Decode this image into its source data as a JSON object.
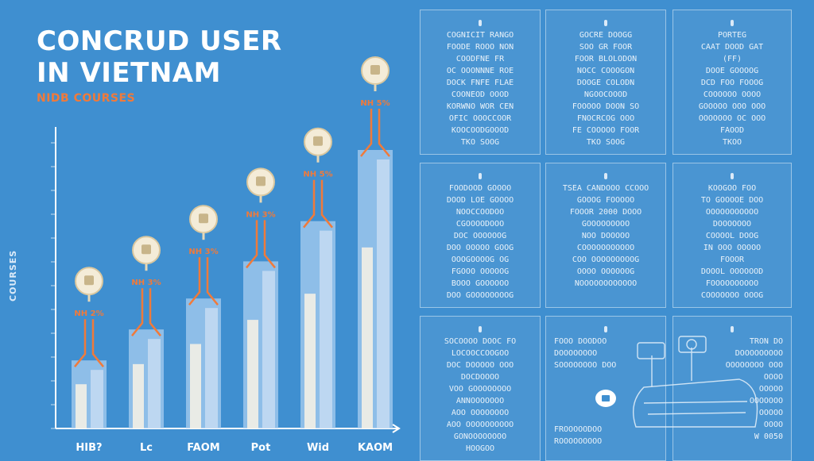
{
  "header": {
    "title_line1": "CONCRUD USER",
    "title_line2": "IN VIETNAM",
    "subtitle": "NIDB COURSES"
  },
  "colors": {
    "background": "#3f8fd0",
    "bar_fill": "#a9cdf0",
    "bar_inner": "#f3efe6",
    "connector": "#f07a3a",
    "axis": "#ffffff"
  },
  "chart_data": {
    "type": "bar",
    "title": "CONCRUD USER IN VIETNAM",
    "subtitle": "NIDB COURSES",
    "ylabel": "COURSES",
    "categories": [
      "HIB?",
      "Lc",
      "FAOM",
      "Pot",
      "Wid",
      "KAOM"
    ],
    "values": [
      22,
      32,
      42,
      54,
      67,
      90
    ],
    "data_labels": [
      "NH 2%",
      "NH 3%",
      "NH 3%",
      "NH 3%",
      "NH 5%",
      "NH 5%"
    ],
    "ylim": [
      0,
      100
    ],
    "grid": false,
    "icons": [
      "bulb-icon",
      "bulb-icon",
      "bulb-icon",
      "bulb-icon",
      "bulb-icon",
      "bulb-icon"
    ]
  },
  "panels": [
    {
      "lines": [
        "COGNICIT RANGO",
        "FOODE ROOO NON",
        "COODFNE FR",
        "OC OOONNNE ROE",
        "DOCK FNFE FLAE",
        "COONEOD OOOD",
        "KORWNO WOR CEN",
        "OFIC OOOCCOOR",
        "KOOCOODGOOOD",
        "TKO SOOG"
      ]
    },
    {
      "lines": [
        "GOCRE DOOGG",
        "SOO GR FOOR",
        "FOOR BLOLODON",
        "NOCC COOOGON",
        "DOOGE COLODN",
        "NGOOCOOOD",
        "FOOOOO DOON SO",
        "FNOCRCOG OOO",
        "FE COOOOO FOOR",
        "TKO SOOG"
      ]
    },
    {
      "lines": [
        "PORTEG",
        "CAAT DOOD GAT",
        "(FF)",
        "DOOE GOOOOG",
        "DCD FOO FOOOG",
        "COOOOOO OOOO",
        "GOOOOO OOO OOO",
        "OOOOOOO OC OOO",
        "FAOOD",
        "TKOO"
      ]
    },
    {
      "lines": [
        "FOODOOD GOOOO",
        "DOOD LOE GOOOO",
        "NOOCCOODOO",
        "CGOOOODOOO",
        "DOC OOOOOOG",
        "DOO OOOOO GOOG",
        "OOOGOOOOG OG",
        "FGOOO OOOOOG",
        "BOOO GOOOOOO",
        "DOO GOOOOOOOOG"
      ]
    },
    {
      "lines": [
        "TSEA CANDOOO CCOOO",
        "GOOOG FOOOOO",
        "FOOOR 2000 DOOO",
        "GOOOOOOOOO",
        "NOO DOOOOO",
        "COOOOOOOOOOO",
        "COO OOOOOOOOOG",
        "OOOO OOOOOOG",
        "NOOOOOOOOOOOO"
      ]
    },
    {
      "lines": [
        "KOOGOO FOO",
        "TO GOOOOE DOO",
        "OOOOOOOOOOO",
        "DOOOOOOO",
        "COOOOL DOOG",
        "IN OOO OOOOO",
        "FOOOR",
        "DOOOL OOOOOOD",
        "FOOOOOOOOOO",
        "COOOOOOO OOOG"
      ]
    },
    {
      "lines": [
        "SOCOOOO DOOC FO",
        "LOCOOCCOOGOO",
        "DOC DOOOOO OOO",
        "DOCDOOOO",
        "VOO GOOOOOOOO",
        "ANNOOOOOOO",
        "AOO OOOOOOOO",
        "AOO OOOOOOOOOO",
        "GONOOOOOOOO",
        "HOOGOO"
      ]
    },
    {
      "lines": [
        "FOOO DOODOO",
        "DOOOOOOOO",
        "SOOOOOOOO DOO",
        "",
        "",
        "FROOOOODOO",
        "ROOOOOOOOO"
      ]
    },
    {
      "lines": [
        "TRON DO",
        "DOOOOOOOOO",
        "OOOOOOOO OOO",
        "OOOO",
        "OOOOO",
        "OOOOOOO",
        "OOOOO",
        "OOOO",
        "W 0050"
      ]
    }
  ]
}
